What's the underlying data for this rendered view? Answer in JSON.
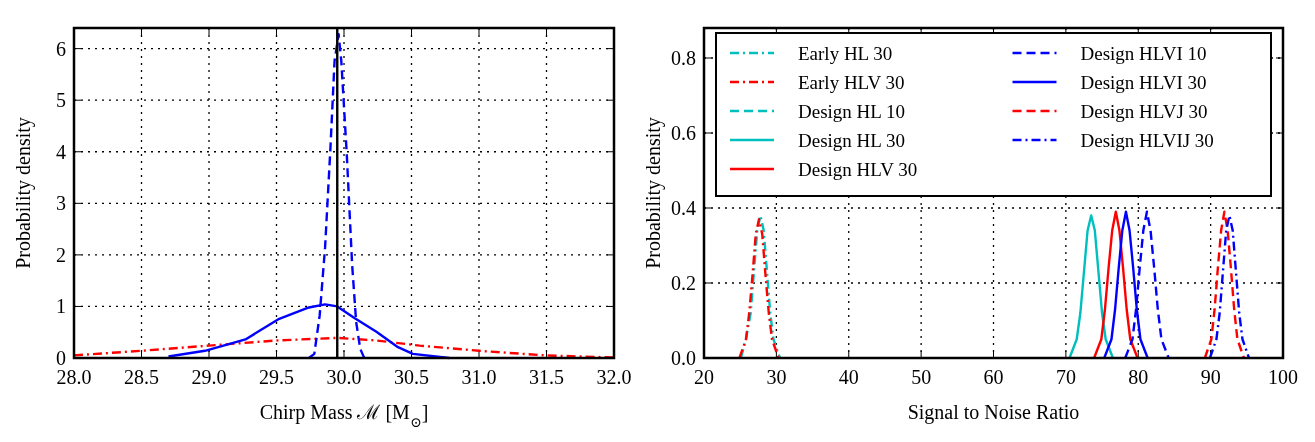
{
  "chart_data": [
    {
      "type": "line",
      "xlabel": "Chirp Mass ℳ [M$_{⊙}$]",
      "ylabel": "Probability density",
      "xlim": [
        28,
        32
      ],
      "ylim": [
        0,
        6.4
      ],
      "xticks": [
        {
          "value": 28,
          "label": "28.0"
        },
        {
          "value": 28.5,
          "label": "28.5"
        },
        {
          "value": 29,
          "label": "29.0"
        },
        {
          "value": 29.5,
          "label": "29.5"
        },
        {
          "value": 30,
          "label": "30.0"
        },
        {
          "value": 30.5,
          "label": "30.5"
        },
        {
          "value": 31,
          "label": "31.0"
        },
        {
          "value": 31.5,
          "label": "31.5"
        },
        {
          "value": 32,
          "label": "32.0"
        }
      ],
      "yticks": [
        0,
        1,
        2,
        3,
        4,
        5,
        6
      ],
      "grid": true,
      "legend": false,
      "ref_lines": [
        {
          "axis": "x",
          "value": 29.95,
          "color": "#000000",
          "line_style": "solid"
        }
      ],
      "series": [
        {
          "color": "#ff0000",
          "line_style": "dashdot",
          "x": [
            28,
            28.5,
            29,
            29.5,
            29.95,
            30.24,
            30.56,
            31,
            31.49,
            32
          ],
          "values": [
            0.05,
            0.14,
            0.24,
            0.34,
            0.39,
            0.34,
            0.24,
            0.14,
            0.05,
            0.01
          ]
        },
        {
          "color": "#0000ff",
          "line_style": "solid",
          "x": [
            28.7,
            28.97,
            29.27,
            29.52,
            29.74,
            29.86,
            29.95,
            30.08,
            30.24,
            30.4,
            30.51,
            30.78
          ],
          "values": [
            0.03,
            0.14,
            0.36,
            0.76,
            0.98,
            1.04,
            1,
            0.77,
            0.51,
            0.21,
            0.08,
            0
          ]
        },
        {
          "color": "#0000ff",
          "line_style": "dashed",
          "x": [
            29.74,
            29.78,
            29.82,
            29.86,
            29.9,
            29.93,
            29.96,
            29.98,
            30.02,
            30.06,
            30.09,
            30.12,
            30.15
          ],
          "values": [
            0,
            0.08,
            0.83,
            2.15,
            4.1,
            5.76,
            6.28,
            5.76,
            3.98,
            1.82,
            0.7,
            0.18,
            0
          ]
        }
      ]
    },
    {
      "type": "line",
      "xlabel": "Signal to Noise Ratio",
      "ylabel": "Probability density",
      "xlim": [
        20,
        100
      ],
      "ylim": [
        0,
        0.88
      ],
      "xticks": [
        20,
        30,
        40,
        50,
        60,
        70,
        80,
        90,
        100
      ],
      "yticks": [
        {
          "value": 0,
          "label": "0.0"
        },
        0.2,
        0.4,
        0.6,
        0.8
      ],
      "grid": true,
      "legend": "top",
      "series": [
        {
          "name": "Early HL 30",
          "color": "#00bfbf",
          "line_style": "dashdot",
          "x": [
            25.1,
            25.8,
            26.45,
            26.9,
            27.35,
            27.8,
            28.25,
            28.7,
            29.15,
            29.6,
            30.5
          ],
          "values": [
            0,
            0.05,
            0.12,
            0.23,
            0.34,
            0.38,
            0.34,
            0.23,
            0.12,
            0.05,
            0
          ]
        },
        {
          "name": "Early HLV 30",
          "color": "#ff0000",
          "line_style": "dashdot",
          "x": [
            24.9,
            25.8,
            26.25,
            26.7,
            27.15,
            27.6,
            28.05,
            28.5,
            28.95,
            29.4,
            30.3
          ],
          "values": [
            0,
            0.05,
            0.12,
            0.22,
            0.33,
            0.37,
            0.33,
            0.22,
            0.12,
            0.05,
            0
          ]
        },
        {
          "name": "Design HL 10",
          "color": "#00bfbf",
          "line_style": "dashed"
        },
        {
          "name": "Design HL 30",
          "color": "#00bfbf",
          "line_style": "solid",
          "x": [
            70.5,
            71.5,
            72,
            72.5,
            73,
            73.5,
            74,
            74.5,
            75,
            75.5,
            76.5
          ],
          "values": [
            0,
            0.05,
            0.12,
            0.23,
            0.34,
            0.38,
            0.34,
            0.23,
            0.12,
            0.05,
            0
          ]
        },
        {
          "name": "Design HLV 30",
          "color": "#ff0000",
          "line_style": "solid",
          "x": [
            73.9,
            74.9,
            75.4,
            75.9,
            76.4,
            76.9,
            77.4,
            77.9,
            78.4,
            78.9,
            79.9
          ],
          "values": [
            0,
            0.05,
            0.13,
            0.24,
            0.34,
            0.39,
            0.34,
            0.24,
            0.13,
            0.05,
            0
          ]
        },
        {
          "name": "Design HLVI 10",
          "color": "#0000ff",
          "line_style": "dashed",
          "x": [
            78.2,
            79.2,
            79.7,
            80.2,
            80.7,
            81.2,
            81.7,
            82.2,
            82.7,
            83.2,
            84.2
          ],
          "values": [
            0,
            0.05,
            0.13,
            0.24,
            0.34,
            0.39,
            0.34,
            0.24,
            0.13,
            0.05,
            0
          ]
        },
        {
          "name": "Design HLVI 30",
          "color": "#0000ff",
          "line_style": "solid",
          "x": [
            75.3,
            76.3,
            76.8,
            77.3,
            77.8,
            78.3,
            78.8,
            79.3,
            79.8,
            80.3,
            81.3
          ],
          "values": [
            0,
            0.05,
            0.13,
            0.24,
            0.34,
            0.39,
            0.34,
            0.24,
            0.13,
            0.05,
            0
          ]
        },
        {
          "name": "Design HLVJ 30",
          "color": "#ff0000",
          "line_style": "dashed",
          "x": [
            89.2,
            90.1,
            90.55,
            91,
            91.45,
            91.9,
            92.35,
            92.8,
            93.25,
            93.7,
            94.6
          ],
          "values": [
            0,
            0.05,
            0.13,
            0.24,
            0.34,
            0.39,
            0.34,
            0.24,
            0.13,
            0.05,
            0
          ]
        },
        {
          "name": "Design HLVIJ 30",
          "color": "#0000ff",
          "line_style": "dashdot",
          "x": [
            89.9,
            90.8,
            91.25,
            91.7,
            92.15,
            92.6,
            93.05,
            93.5,
            93.95,
            94.4,
            95.3
          ],
          "values": [
            0,
            0.05,
            0.12,
            0.23,
            0.34,
            0.38,
            0.34,
            0.23,
            0.12,
            0.05,
            0
          ]
        }
      ]
    }
  ]
}
